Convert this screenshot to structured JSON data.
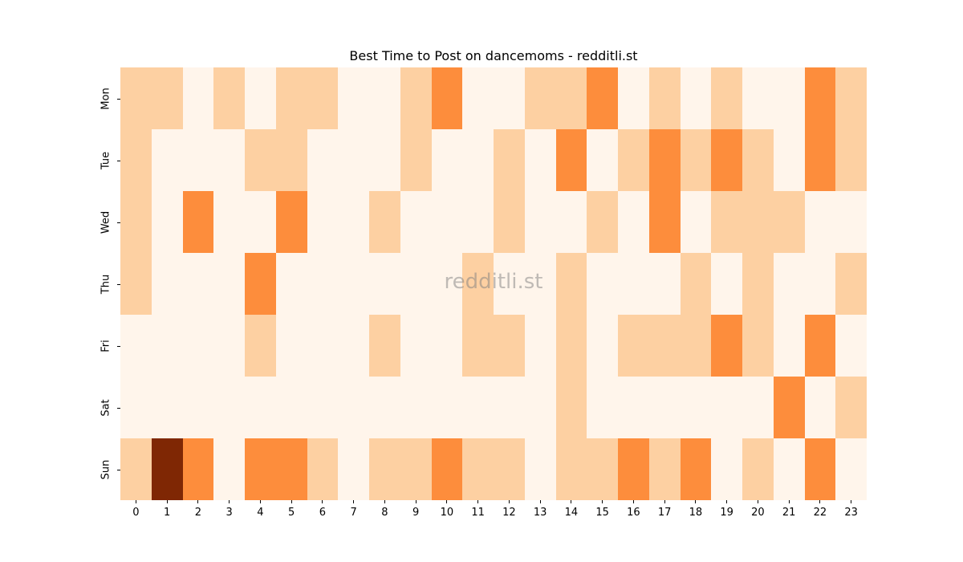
{
  "chart_data": {
    "type": "heatmap",
    "title": "Best Time to Post on dancemoms - redditli.st",
    "xlabel": "",
    "ylabel": "",
    "x": [
      "0",
      "1",
      "2",
      "3",
      "4",
      "5",
      "6",
      "7",
      "8",
      "9",
      "10",
      "11",
      "12",
      "13",
      "14",
      "15",
      "16",
      "17",
      "18",
      "19",
      "20",
      "21",
      "22",
      "23"
    ],
    "y": [
      "Mon",
      "Tue",
      "Wed",
      "Thu",
      "Fri",
      "Sat",
      "Sun"
    ],
    "colormap": "Oranges",
    "level_colors": [
      "#fff5eb",
      "#fdd0a2",
      "#fd8d3c",
      "#7f2704"
    ],
    "values": [
      [
        1,
        1,
        0,
        1,
        0,
        1,
        1,
        0,
        0,
        1,
        2,
        0,
        0,
        1,
        1,
        2,
        0,
        1,
        0,
        1,
        0,
        0,
        2,
        1
      ],
      [
        1,
        0,
        0,
        0,
        1,
        1,
        0,
        0,
        0,
        1,
        0,
        0,
        1,
        0,
        2,
        0,
        1,
        2,
        1,
        2,
        1,
        0,
        2,
        1
      ],
      [
        1,
        0,
        2,
        0,
        0,
        2,
        0,
        0,
        1,
        0,
        0,
        0,
        1,
        0,
        0,
        1,
        0,
        2,
        0,
        1,
        1,
        1,
        0,
        0
      ],
      [
        1,
        0,
        0,
        0,
        2,
        0,
        0,
        0,
        0,
        0,
        0,
        1,
        0,
        0,
        1,
        0,
        0,
        0,
        1,
        0,
        1,
        0,
        0,
        1
      ],
      [
        0,
        0,
        0,
        0,
        1,
        0,
        0,
        0,
        1,
        0,
        0,
        1,
        1,
        0,
        1,
        0,
        1,
        1,
        1,
        2,
        1,
        0,
        2,
        0
      ],
      [
        0,
        0,
        0,
        0,
        0,
        0,
        0,
        0,
        0,
        0,
        0,
        0,
        0,
        0,
        1,
        0,
        0,
        0,
        0,
        0,
        0,
        2,
        0,
        1
      ],
      [
        1,
        3,
        2,
        0,
        2,
        2,
        1,
        0,
        1,
        1,
        2,
        1,
        1,
        0,
        1,
        1,
        2,
        1,
        2,
        0,
        1,
        0,
        2,
        0
      ]
    ],
    "colorbar": false,
    "grid": false
  },
  "watermark": "redditli.st"
}
